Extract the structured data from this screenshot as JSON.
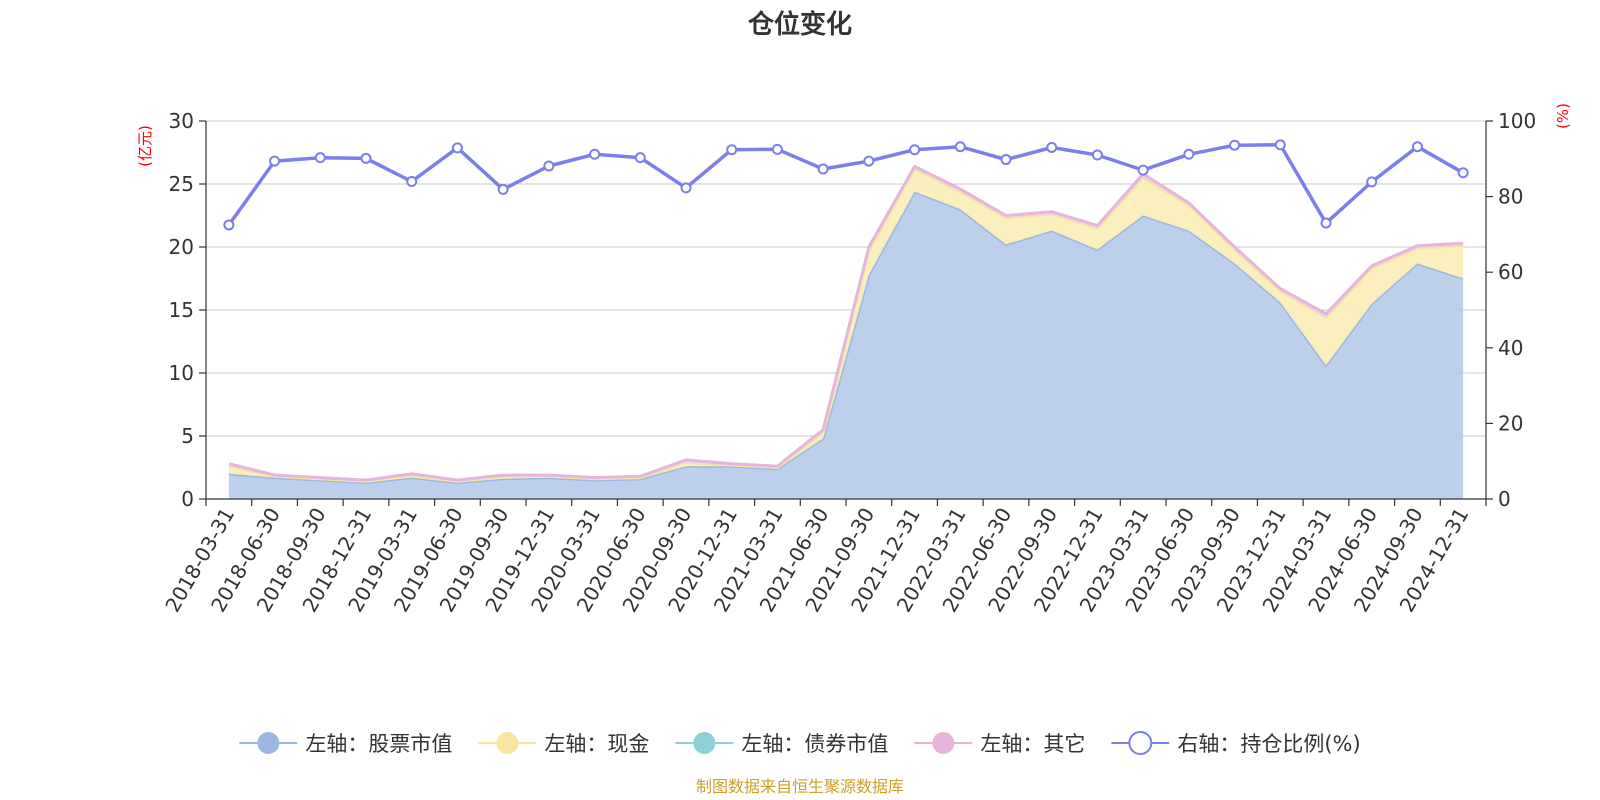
{
  "chart_data": {
    "type": "area",
    "title": "仓位变化",
    "left_axis": {
      "unit": "(亿元)",
      "ylim": [
        0,
        30
      ],
      "ticks": [
        0,
        5,
        10,
        15,
        20,
        25,
        30
      ]
    },
    "right_axis": {
      "unit": "(%)",
      "ylim": [
        0,
        100
      ],
      "ticks": [
        0,
        20,
        40,
        60,
        80,
        100
      ]
    },
    "grid": true,
    "legend_position": "bottom",
    "categories": [
      "2018-03-31",
      "2018-06-30",
      "2018-09-30",
      "2018-12-31",
      "2019-03-31",
      "2019-06-30",
      "2019-09-30",
      "2019-12-31",
      "2020-03-31",
      "2020-06-30",
      "2020-09-30",
      "2020-12-31",
      "2021-03-31",
      "2021-06-30",
      "2021-09-30",
      "2021-12-31",
      "2022-03-31",
      "2022-06-30",
      "2022-09-30",
      "2022-12-31",
      "2023-03-31",
      "2023-06-30",
      "2023-09-30",
      "2023-12-31",
      "2024-03-31",
      "2024-06-30",
      "2024-09-30",
      "2024-12-31"
    ],
    "series": [
      {
        "name": "左轴：股票市值",
        "axis": "left",
        "stack": true,
        "color": "#9cb7e0",
        "fill": "#b8ceeb",
        "values": [
          2.0,
          1.7,
          1.5,
          1.3,
          1.7,
          1.3,
          1.6,
          1.7,
          1.5,
          1.6,
          2.6,
          2.6,
          2.4,
          4.8,
          17.8,
          24.4,
          23.0,
          20.2,
          21.3,
          19.8,
          22.5,
          21.3,
          18.7,
          15.6,
          10.6,
          15.5,
          18.7,
          17.5
        ]
      },
      {
        "name": "左轴：现金",
        "axis": "left",
        "stack": true,
        "color": "#f7e6a0",
        "fill": "#fbeeba",
        "values": [
          0.6,
          0.1,
          0.1,
          0.1,
          0.2,
          0.1,
          0.2,
          0.1,
          0.1,
          0.1,
          0.3,
          0.1,
          0.1,
          0.5,
          1.9,
          1.8,
          1.4,
          2.1,
          1.3,
          1.7,
          3.0,
          2.0,
          1.1,
          0.9,
          3.8,
          2.8,
          1.2,
          2.6
        ]
      },
      {
        "name": "左轴：债券市值",
        "axis": "left",
        "stack": true,
        "color": "#8fcfd6",
        "fill": "#a8dde2",
        "values": [
          0,
          0,
          0,
          0,
          0,
          0,
          0,
          0,
          0,
          0,
          0,
          0,
          0,
          0,
          0,
          0,
          0,
          0,
          0,
          0,
          0,
          0,
          0,
          0,
          0,
          0,
          0,
          0
        ]
      },
      {
        "name": "左轴：其它",
        "axis": "left",
        "stack": true,
        "color": "#e6b5db",
        "fill": "#efcfe6",
        "values": [
          0.2,
          0.1,
          0.1,
          0.1,
          0.1,
          0.1,
          0.1,
          0.1,
          0.1,
          0.1,
          0.2,
          0.1,
          0.1,
          0.2,
          0.3,
          0.2,
          0.2,
          0.2,
          0.2,
          0.2,
          0.3,
          0.2,
          0.2,
          0.2,
          0.3,
          0.2,
          0.2,
          0.2
        ]
      },
      {
        "name": "右轴：持仓比例(%)",
        "axis": "right",
        "stack": false,
        "color": "#7b7fee",
        "fill": "none",
        "values": [
          72.5,
          89.4,
          90.3,
          90.1,
          84.0,
          92.9,
          81.9,
          88.1,
          91.2,
          90.3,
          82.3,
          92.4,
          92.5,
          87.3,
          89.4,
          92.4,
          93.2,
          89.8,
          93.0,
          91.0,
          87.0,
          91.2,
          93.6,
          93.7,
          73.0,
          83.9,
          93.2,
          86.3
        ]
      }
    ],
    "source_note": "制图数据来自恒生聚源数据库"
  }
}
